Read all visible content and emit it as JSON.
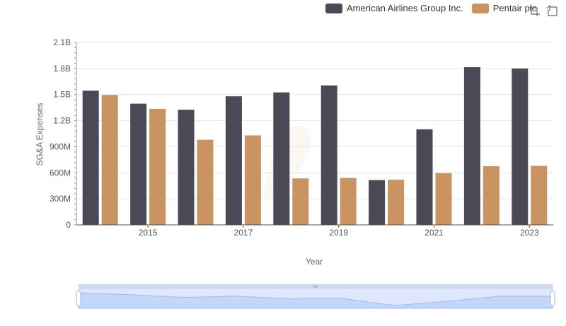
{
  "legend": {
    "items": [
      {
        "name": "American Airlines Group Inc.",
        "color": "#4a4a57"
      },
      {
        "name": "Pentair plc",
        "color": "#c99461"
      }
    ]
  },
  "toolbox": {
    "icons": [
      "zoom-icon",
      "restore-icon"
    ]
  },
  "chart_data": {
    "type": "bar",
    "xlabel": "Year",
    "ylabel": "SG&A Expenses",
    "ylim": [
      0,
      2100000000
    ],
    "yticks": [
      {
        "value": 0,
        "label": "0"
      },
      {
        "value": 300000000,
        "label": "300M"
      },
      {
        "value": 600000000,
        "label": "600M"
      },
      {
        "value": 900000000,
        "label": "900M"
      },
      {
        "value": 1200000000,
        "label": "1.2B"
      },
      {
        "value": 1500000000,
        "label": "1.5B"
      },
      {
        "value": 1800000000,
        "label": "1.8B"
      },
      {
        "value": 2100000000,
        "label": "2.1B"
      }
    ],
    "categories": [
      "2014",
      "2015",
      "2016",
      "2017",
      "2018",
      "2019",
      "2020",
      "2021",
      "2022",
      "2023"
    ],
    "xtick_labels": [
      "2015",
      "2017",
      "2019",
      "2021",
      "2023"
    ],
    "series": [
      {
        "name": "American Airlines Group Inc.",
        "color": "#4a4a57",
        "values": [
          1545000000,
          1395000000,
          1325000000,
          1480000000,
          1525000000,
          1605000000,
          515000000,
          1100000000,
          1815000000,
          1800000000
        ]
      },
      {
        "name": "Pentair plc",
        "color": "#c99461",
        "values": [
          1495000000,
          1335000000,
          980000000,
          1030000000,
          535000000,
          540000000,
          520000000,
          595000000,
          675000000,
          680000000
        ]
      }
    ],
    "grid": true,
    "legend_position": "top-right",
    "datazoom": {
      "range": [
        0,
        100
      ]
    }
  }
}
